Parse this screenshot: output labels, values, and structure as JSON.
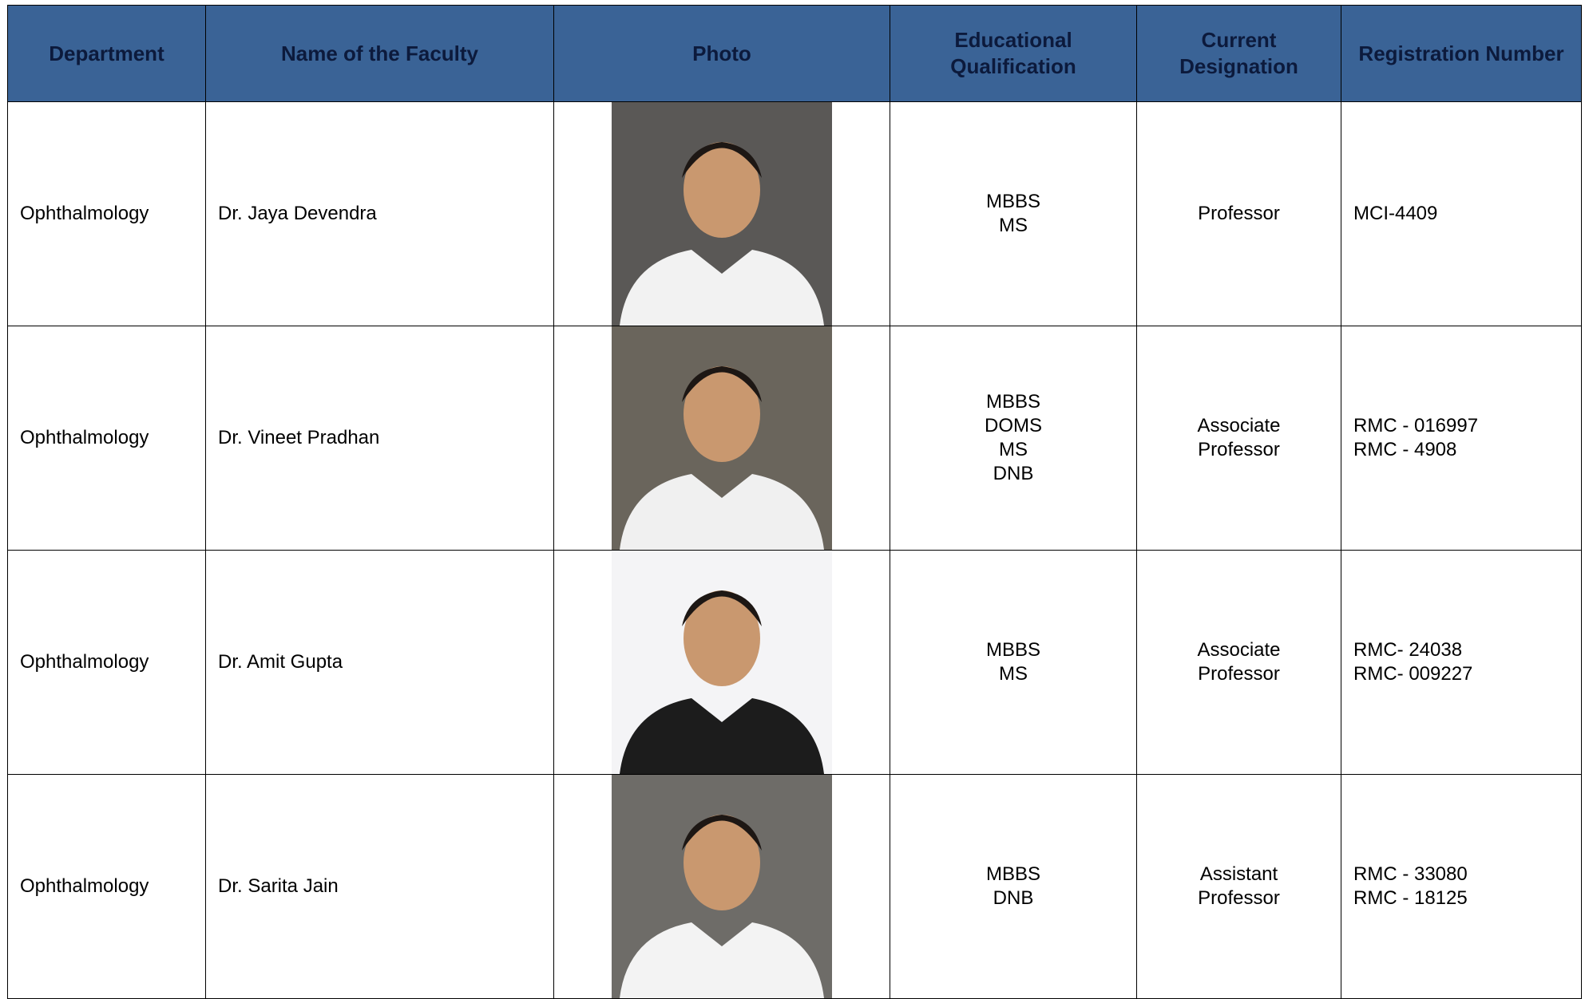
{
  "table": {
    "headers": [
      "Department",
      "Name of the Faculty",
      "Photo",
      "Educational Qualification",
      "Current Designation",
      "Registration Number"
    ],
    "rows": [
      {
        "department": "Ophthalmology",
        "name": "Dr. Jaya Devendra",
        "qualification": [
          "MBBS",
          "MS"
        ],
        "designation": [
          "Professor"
        ],
        "registration": [
          "MCI-4409"
        ]
      },
      {
        "department": "Ophthalmology",
        "name": "Dr. Vineet Pradhan",
        "qualification": [
          "MBBS",
          "DOMS",
          "MS",
          "DNB"
        ],
        "designation": [
          "Associate",
          "Professor"
        ],
        "registration": [
          "RMC - 016997",
          "RMC - 4908"
        ]
      },
      {
        "department": "Ophthalmology",
        "name": "Dr. Amit Gupta",
        "qualification": [
          "MBBS",
          "MS"
        ],
        "designation": [
          "Associate",
          "Professor"
        ],
        "registration": [
          "RMC- 24038",
          "RMC- 009227"
        ]
      },
      {
        "department": "Ophthalmology",
        "name": "Dr. Sarita Jain",
        "qualification": [
          "MBBS",
          "DNB"
        ],
        "designation": [
          "Assistant",
          "Professor"
        ],
        "registration": [
          "RMC - 33080",
          "RMC - 18125"
        ]
      }
    ]
  }
}
